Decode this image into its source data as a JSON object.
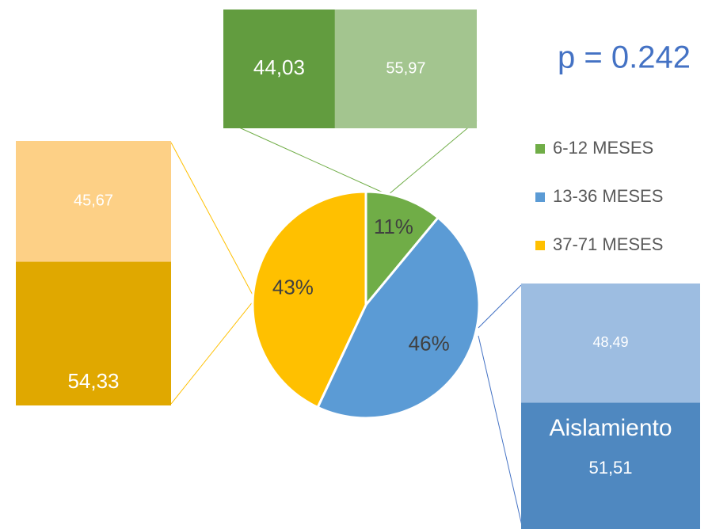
{
  "chart_data": {
    "type": "pie",
    "annotation": "p = 0.242",
    "categories": [
      "6-12 MESES",
      "13-36 MESES",
      "37-71 MESES"
    ],
    "values": [
      11,
      46,
      43
    ],
    "value_labels": [
      "11%",
      "46%",
      "43%"
    ],
    "colors": [
      "#70ad47",
      "#5b9bd5",
      "#ffc000"
    ],
    "legend": "right",
    "breakdowns": [
      {
        "values": [
          44.03,
          55.97
        ],
        "value_labels": [
          "44,03",
          "55,97"
        ],
        "colors": [
          "#629c3f",
          "#a3c58f"
        ]
      },
      {
        "values": [
          51.51,
          48.49
        ],
        "value_labels": [
          "51,51",
          "48,49"
        ],
        "colors": [
          "#4f88c0",
          "#9dbde1"
        ],
        "name": "Aislamiento"
      },
      {
        "values": [
          54.33,
          45.67
        ],
        "value_labels": [
          "54,33",
          "45,67"
        ],
        "colors": [
          "#e0a800",
          "#fdd086"
        ]
      }
    ]
  }
}
